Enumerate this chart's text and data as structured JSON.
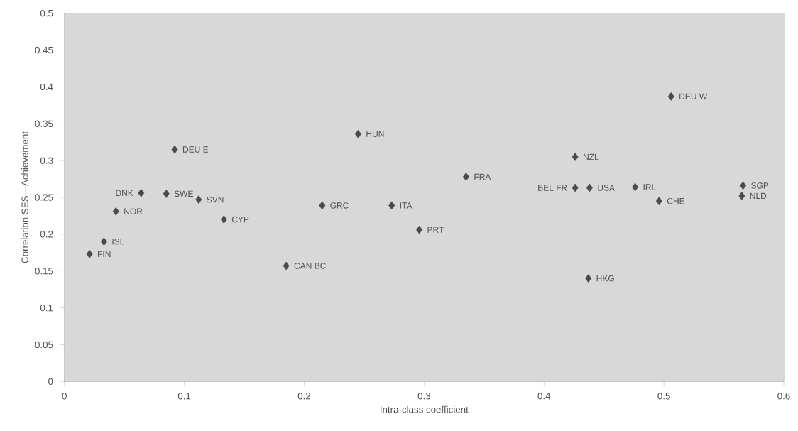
{
  "chart_data": {
    "type": "scatter",
    "xlabel": "Intra-class coefficient",
    "ylabel": "Correlation SES—Achievement",
    "x": [
      0.021,
      0.033,
      0.043,
      0.064,
      0.085,
      0.112,
      0.133,
      0.092,
      0.185,
      0.215,
      0.245,
      0.273,
      0.296,
      0.335,
      0.426,
      0.426,
      0.438,
      0.476,
      0.496,
      0.506,
      0.437,
      0.566,
      0.565
    ],
    "values": [
      0.173,
      0.19,
      0.231,
      0.256,
      0.255,
      0.247,
      0.22,
      0.315,
      0.157,
      0.239,
      0.336,
      0.239,
      0.206,
      0.278,
      0.305,
      0.263,
      0.263,
      0.264,
      0.245,
      0.387,
      0.14,
      0.266,
      0.252
    ],
    "color": "#4a4a4a",
    "marker": "diamond",
    "xlim": [
      0,
      0.6
    ],
    "ylim": [
      0,
      0.5
    ],
    "xticks": [
      0,
      0.1,
      0.2,
      0.3,
      0.4,
      0.5,
      0.6
    ],
    "yticks": [
      0,
      0.05,
      0.1,
      0.15,
      0.2,
      0.25,
      0.3,
      0.35,
      0.4,
      0.45,
      0.5
    ],
    "annotations": [
      {
        "text": "FIN",
        "x": 0.021,
        "y": 0.173
      },
      {
        "text": "ISL",
        "x": 0.033,
        "y": 0.19
      },
      {
        "text": "NOR",
        "x": 0.043,
        "y": 0.231
      },
      {
        "text": "DNK",
        "x": 0.064,
        "y": 0.256
      },
      {
        "text": "SWE",
        "x": 0.085,
        "y": 0.255
      },
      {
        "text": "SVN",
        "x": 0.112,
        "y": 0.247
      },
      {
        "text": "CYP",
        "x": 0.133,
        "y": 0.22
      },
      {
        "text": "DEU E",
        "x": 0.092,
        "y": 0.315
      },
      {
        "text": "CAN BC",
        "x": 0.185,
        "y": 0.157
      },
      {
        "text": "GRC",
        "x": 0.215,
        "y": 0.239
      },
      {
        "text": "HUN",
        "x": 0.245,
        "y": 0.336
      },
      {
        "text": "ITA",
        "x": 0.273,
        "y": 0.239
      },
      {
        "text": "PRT",
        "x": 0.296,
        "y": 0.206
      },
      {
        "text": "FRA",
        "x": 0.335,
        "y": 0.278
      },
      {
        "text": "NZL",
        "x": 0.426,
        "y": 0.305
      },
      {
        "text": "BEL FR",
        "x": 0.426,
        "y": 0.263
      },
      {
        "text": "USA",
        "x": 0.438,
        "y": 0.263
      },
      {
        "text": "IRL",
        "x": 0.476,
        "y": 0.264
      },
      {
        "text": "CHE",
        "x": 0.496,
        "y": 0.245
      },
      {
        "text": "DEU W",
        "x": 0.506,
        "y": 0.387
      },
      {
        "text": "HKG",
        "x": 0.437,
        "y": 0.14
      },
      {
        "text": "SGP",
        "x": 0.566,
        "y": 0.266
      },
      {
        "text": "NLD",
        "x": 0.565,
        "y": 0.252
      }
    ]
  }
}
